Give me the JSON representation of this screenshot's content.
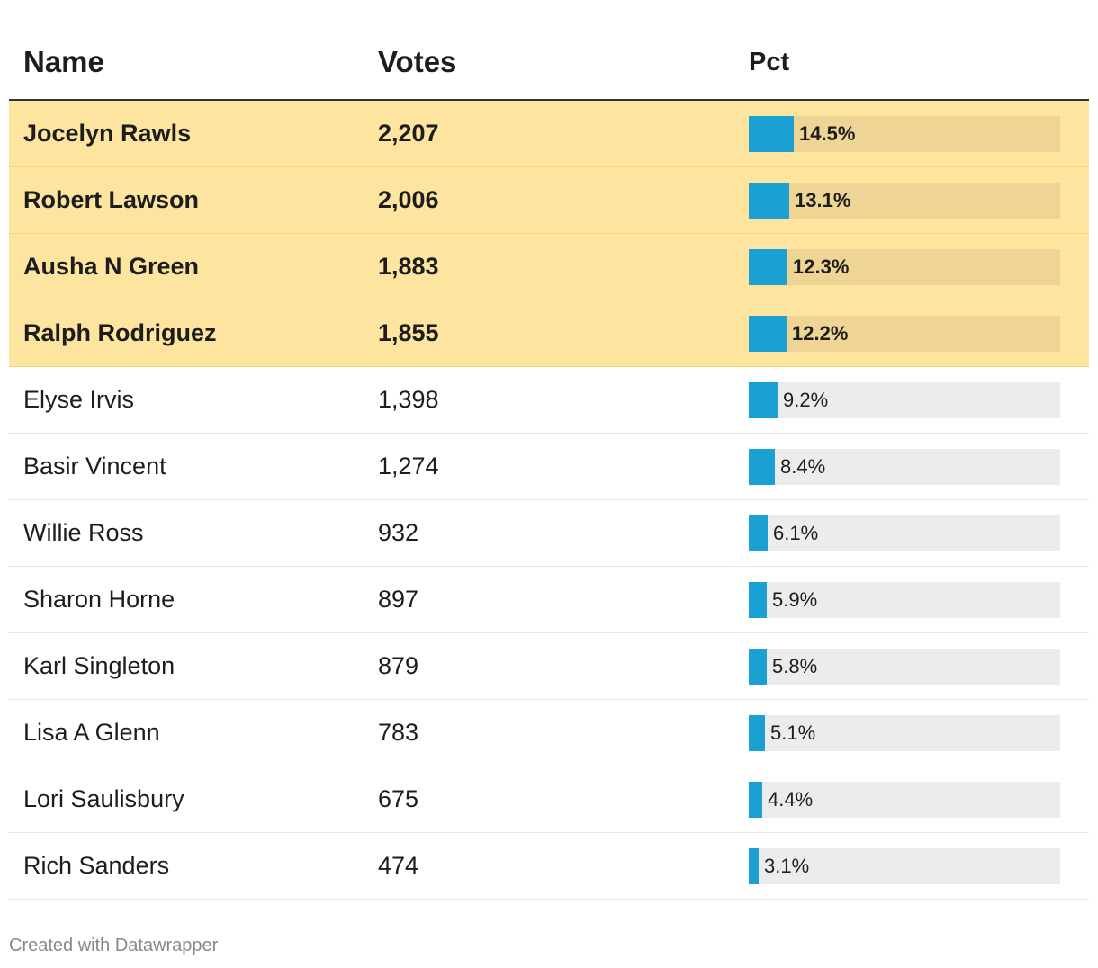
{
  "table": {
    "headers": {
      "name": "Name",
      "votes": "Votes",
      "pct": "Pct"
    }
  },
  "chart_data": {
    "type": "table",
    "columns": [
      "Name",
      "Votes",
      "Pct"
    ],
    "rows": [
      {
        "name": "Jocelyn Rawls",
        "votes": "2,207",
        "pct": 14.5,
        "pct_label": "14.5%",
        "highlight": true
      },
      {
        "name": "Robert Lawson",
        "votes": "2,006",
        "pct": 13.1,
        "pct_label": "13.1%",
        "highlight": true
      },
      {
        "name": "Ausha N Green",
        "votes": "1,883",
        "pct": 12.3,
        "pct_label": "12.3%",
        "highlight": true
      },
      {
        "name": "Ralph Rodriguez",
        "votes": "1,855",
        "pct": 12.2,
        "pct_label": "12.2%",
        "highlight": true
      },
      {
        "name": "Elyse Irvis",
        "votes": "1,398",
        "pct": 9.2,
        "pct_label": "9.2%",
        "highlight": false
      },
      {
        "name": "Basir Vincent",
        "votes": "1,274",
        "pct": 8.4,
        "pct_label": "8.4%",
        "highlight": false
      },
      {
        "name": "Willie Ross",
        "votes": "932",
        "pct": 6.1,
        "pct_label": "6.1%",
        "highlight": false
      },
      {
        "name": "Sharon Horne",
        "votes": "897",
        "pct": 5.9,
        "pct_label": "5.9%",
        "highlight": false
      },
      {
        "name": "Karl Singleton",
        "votes": "879",
        "pct": 5.8,
        "pct_label": "5.8%",
        "highlight": false
      },
      {
        "name": "Lisa A Glenn",
        "votes": "783",
        "pct": 5.1,
        "pct_label": "5.1%",
        "highlight": false
      },
      {
        "name": "Lori Saulisbury",
        "votes": "675",
        "pct": 4.4,
        "pct_label": "4.4%",
        "highlight": false
      },
      {
        "name": "Rich Sanders",
        "votes": "474",
        "pct": 3.1,
        "pct_label": "3.1%",
        "highlight": false
      }
    ],
    "bar_max_pct": 100
  },
  "colors": {
    "bar": "#1aa0d2",
    "highlight_row": "#fde49f",
    "bar_track": "#ececec",
    "bar_track_highlight": "#efd595"
  },
  "footer": {
    "credit": "Created with Datawrapper"
  }
}
